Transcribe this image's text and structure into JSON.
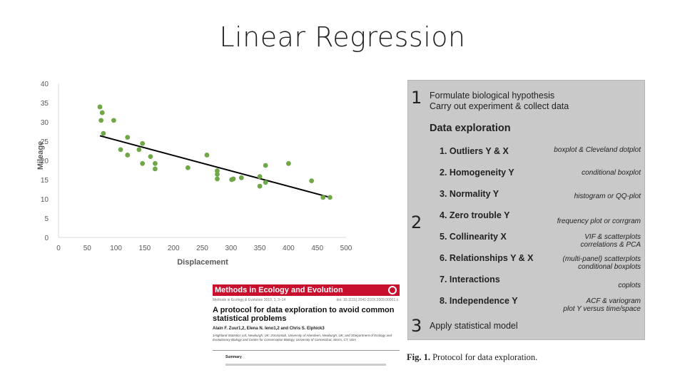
{
  "slide": {
    "title": "Linear Regression"
  },
  "chart_data": {
    "type": "scatter",
    "title": "",
    "xlabel": "Displacement",
    "ylabel": "Mileage",
    "xlim": [
      0,
      500
    ],
    "ylim": [
      0,
      40
    ],
    "xticks": [
      0,
      50,
      100,
      150,
      200,
      250,
      300,
      350,
      400,
      450,
      500
    ],
    "yticks": [
      0,
      5,
      10,
      15,
      20,
      25,
      30,
      35,
      40
    ],
    "grid": false,
    "point_color": "#70a847",
    "line_color": "#000000",
    "points": [
      [
        72,
        33.9
      ],
      [
        76,
        32.4
      ],
      [
        78,
        27.0
      ],
      [
        74,
        30.4
      ],
      [
        96,
        30.4
      ],
      [
        108,
        22.8
      ],
      [
        120,
        21.4
      ],
      [
        120,
        26.0
      ],
      [
        140,
        22.8
      ],
      [
        146,
        24.4
      ],
      [
        146,
        19.2
      ],
      [
        160,
        21.0
      ],
      [
        168,
        19.2
      ],
      [
        168,
        17.8
      ],
      [
        225,
        18.1
      ],
      [
        258,
        21.4
      ],
      [
        276,
        17.3
      ],
      [
        276,
        16.4
      ],
      [
        276,
        15.2
      ],
      [
        301,
        15.0
      ],
      [
        304,
        15.2
      ],
      [
        318,
        15.5
      ],
      [
        350,
        15.8
      ],
      [
        350,
        13.3
      ],
      [
        360,
        18.7
      ],
      [
        360,
        14.3
      ],
      [
        400,
        19.2
      ],
      [
        440,
        14.7
      ],
      [
        460,
        10.4
      ],
      [
        472,
        10.4
      ]
    ],
    "fit_line": {
      "x": [
        72,
        472
      ],
      "y": [
        26.4,
        10.4
      ]
    }
  },
  "protocol": {
    "section1_number": "1",
    "section1_line1": "Formulate biological hypothesis",
    "section1_line2": "Carry out experiment & collect data",
    "section2_heading": "Data exploration",
    "section2_number": "2",
    "steps": [
      {
        "label": "1. Outliers Y & X",
        "note1": "boxplot & Cleveland dotplot",
        "note2": ""
      },
      {
        "label": "2. Homogeneity Y",
        "note1": "conditional boxplot",
        "note2": ""
      },
      {
        "label": "3. Normality Y",
        "note1": "histogram or QQ-plot",
        "note2": ""
      },
      {
        "label": "4. Zero trouble Y",
        "note1": "frequency plot or corrgram",
        "note2": ""
      },
      {
        "label": "5. Collinearity X",
        "note1": "VIF & scatterplots",
        "note2": "correlations & PCA"
      },
      {
        "label": "6. Relationships Y & X",
        "note1": "(multi-panel) scatterplots",
        "note2": "conditional boxplots"
      },
      {
        "label": "7. Interactions",
        "note1": "coplots",
        "note2": ""
      },
      {
        "label": "8. Independence Y",
        "note1": "ACF & variogram",
        "note2": "plot Y versus time/space"
      }
    ],
    "section3_number": "3",
    "section3_text": "Apply statistical model",
    "caption_bold": "Fig. 1.",
    "caption_rest": "Protocol for data exploration."
  },
  "paper": {
    "journal": "Methods in Ecology and Evolution",
    "meta_left": "Methods in Ecology & Evolution 2010, 1, 3–14",
    "meta_right": "doi: 10.1111/j.2041-210X.2009.00001.x",
    "title": "A protocol for data exploration to avoid common statistical problems",
    "authors": "Alain F. Zuur1,2, Elena N. Ieno1,2 and Chris S. Elphick3",
    "affiliations": "1Highland Statistics Ltd, Newburgh, UK; 2Oceanlab, University of Aberdeen, Newburgh, UK; and 3Department of Ecology and Evolutionary Biology and Center for Conservation Biology, University of Connecticut, Storrs, CT, USA",
    "summary_heading": "Summary"
  }
}
